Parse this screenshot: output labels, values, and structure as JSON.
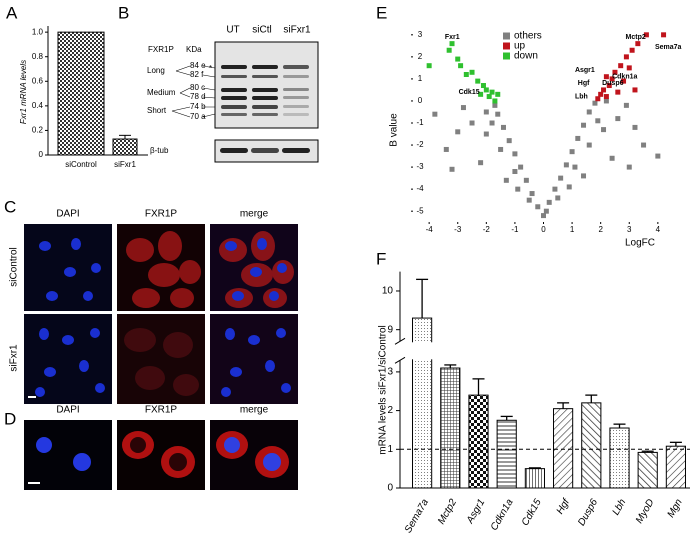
{
  "panel_letters": [
    "A",
    "B",
    "C",
    "D",
    "E",
    "F"
  ],
  "chart_data": [
    {
      "type": "bar",
      "ylabel": "Fxr1 mRNA levels",
      "categories": [
        "siControl",
        "siFxr1"
      ],
      "values": [
        1.0,
        0.13
      ],
      "errors": [
        0,
        0.03
      ],
      "ylim": [
        0,
        1.05
      ],
      "yticks": [
        0,
        0.2,
        0.4,
        0.6,
        0.8,
        {
          "value": 1.0,
          "label": "1.0"
        }
      ]
    },
    {
      "type": "scatter",
      "xlabel": "LogFC",
      "ylabel": "B value",
      "legend": "top",
      "xlim": [
        -4.6,
        4.6
      ],
      "ylim": [
        -5.4,
        3.4
      ],
      "xticks": [
        -4,
        -3,
        -2,
        -1,
        0,
        1,
        2,
        3,
        4
      ],
      "yticks": [
        -5,
        -4,
        -3,
        -2,
        -1,
        0,
        1,
        2,
        3
      ],
      "series": [
        {
          "name": "others",
          "color": "#808080",
          "x": [
            0,
            -0.2,
            0.2,
            -0.4,
            0.4,
            -0.6,
            0.6,
            -0.8,
            0.8,
            -1.0,
            1.0,
            -1.2,
            1.2,
            -1.4,
            1.4,
            -1.6,
            1.6,
            -1.7,
            1.8,
            -0.5,
            0.5,
            -1.0,
            1.1,
            -1.5,
            1.6,
            -2.0,
            2.1,
            -2.5,
            2.6,
            -3.0,
            3.2,
            -3.4,
            3.5,
            -2.2,
            2.4,
            -1.3,
            1.4,
            -3.8,
            4.0,
            -2.8,
            2.9,
            -0.9,
            0.9,
            -2.0,
            2.2,
            -1.8,
            1.9,
            3.0,
            -3.2,
            0.1
          ],
          "y": [
            -5.2,
            -4.8,
            -4.6,
            -4.2,
            -4.0,
            -3.6,
            -3.5,
            -3.0,
            -2.9,
            -2.4,
            -2.3,
            -1.8,
            -1.7,
            -1.2,
            -1.1,
            -0.6,
            -0.5,
            -0.2,
            -0.1,
            -4.5,
            -4.4,
            -3.2,
            -3.0,
            -2.2,
            -2.0,
            -1.5,
            -1.3,
            -1.0,
            -0.8,
            -1.4,
            -1.2,
            -2.2,
            -2.0,
            -2.8,
            -2.6,
            -3.6,
            -3.4,
            -0.6,
            -2.5,
            -0.3,
            -0.2,
            -4.0,
            -3.9,
            -0.5,
            0,
            -1.0,
            -0.9,
            -3.0,
            -3.1,
            -5.0
          ]
        },
        {
          "name": "up",
          "color": "#c0141c",
          "x": [
            1.9,
            2.0,
            2.1,
            2.2,
            2.3,
            2.4,
            2.5,
            2.6,
            2.7,
            2.8,
            3.0,
            3.1,
            3.3,
            3.6,
            4.2,
            2.9,
            2.2,
            3.2
          ],
          "y": [
            0.1,
            0.3,
            0.5,
            0.2,
            0.7,
            1.0,
            1.3,
            0.4,
            1.6,
            0.9,
            1.5,
            2.3,
            2.6,
            3.0,
            3.0,
            2.0,
            1.1,
            0.5
          ]
        },
        {
          "name": "down",
          "color": "#2fc02f",
          "x": [
            -4.0,
            -3.3,
            -3.2,
            -3.0,
            -2.9,
            -2.7,
            -2.5,
            -2.3,
            -2.1,
            -2.0,
            -1.9,
            -1.8,
            -1.6,
            -1.7,
            -2.2
          ],
          "y": [
            1.6,
            2.3,
            2.6,
            1.9,
            1.6,
            1.2,
            1.3,
            0.9,
            0.7,
            0.5,
            0.2,
            0.4,
            0.3,
            0.0,
            0.3
          ]
        }
      ],
      "annotations": [
        {
          "text": "Fxr1",
          "x": -3.45,
          "y": 2.9
        },
        {
          "text": "Cdk15",
          "x": -2.97,
          "y": 0.4
        },
        {
          "text": "Mctp2",
          "x": 2.87,
          "y": 2.9
        },
        {
          "text": "Sema7a",
          "x": 3.9,
          "y": 2.45
        },
        {
          "text": "Asgr1",
          "x": 1.1,
          "y": 1.4
        },
        {
          "text": "Cdkn1a",
          "x": 2.4,
          "y": 1.1
        },
        {
          "text": "Hgf",
          "x": 1.2,
          "y": 0.8
        },
        {
          "text": "Dusp6",
          "x": 2.05,
          "y": 0.8
        },
        {
          "text": "Lbh",
          "x": 1.1,
          "y": 0.2
        }
      ]
    },
    {
      "type": "bar",
      "ylabel": "mRNA levels siFxr1/siControl",
      "categories": [
        "Sema7a",
        "Mctp2",
        "Asgr1",
        "Cdkn1a",
        "Cdk15",
        "Hgf",
        "Dusp6",
        "Lbh",
        "MyoD",
        "Mgn"
      ],
      "values": [
        9.3,
        3.1,
        2.4,
        1.75,
        0.5,
        2.05,
        2.2,
        1.55,
        0.92,
        1.08
      ],
      "errors": [
        1.0,
        0.08,
        0.42,
        0.1,
        0.02,
        0.15,
        0.2,
        0.1,
        0.03,
        0.1
      ],
      "ylim": [
        0,
        10.5
      ],
      "ybreak": [
        3.3,
        8.7
      ],
      "yticks": [
        0,
        1,
        2,
        3,
        9,
        10
      ],
      "reference_line": 1
    }
  ],
  "blot": {
    "lanes": [
      "UT",
      "siCtl",
      "siFxr1"
    ],
    "protein": "FXR1P",
    "unit": "KDa",
    "isoforms": [
      "Long",
      "Medium",
      "Short"
    ],
    "bands": [
      "84 e",
      "82 f",
      "80 c",
      "78 d",
      "74 b",
      "70 a"
    ],
    "marker": "*",
    "loading": "β-tub"
  },
  "microscopy_c": {
    "columns": [
      "DAPI",
      "FXR1P",
      "merge"
    ],
    "rows": [
      "siControl",
      "siFxr1"
    ]
  },
  "microscopy_d": {
    "columns": [
      "DAPI",
      "FXR1P",
      "merge"
    ]
  }
}
